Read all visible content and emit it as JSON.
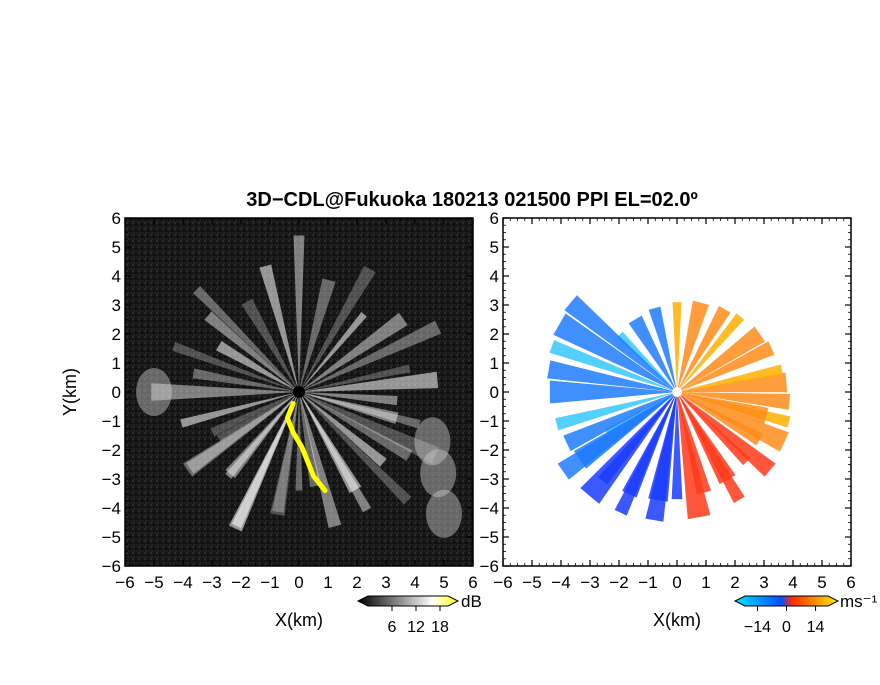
{
  "title": "3D−CDL@Fukuoka 180213 021500 PPI EL=02.0º",
  "chart_data": [
    {
      "type": "heatmap",
      "panel": "reflectivity",
      "xlabel": "X(km)",
      "ylabel": "Y(km)",
      "xlim": [
        -6,
        6
      ],
      "ylim": [
        -6,
        6
      ],
      "xticks": [
        "−6",
        "−5",
        "−4",
        "−3",
        "−2",
        "−1",
        "0",
        "1",
        "2",
        "3",
        "4",
        "5",
        "6"
      ],
      "yticks": [
        "6",
        "5",
        "4",
        "3",
        "2",
        "1",
        "0",
        "−1",
        "−2",
        "−3",
        "−4",
        "−5",
        "−6"
      ],
      "colorbar": {
        "unit": "dB",
        "ticks": [
          "6",
          "12",
          "18"
        ],
        "tick_values": [
          6,
          12,
          18
        ],
        "range": [
          0,
          20
        ],
        "colors": [
          "#000000",
          "#ffffff",
          "#ffff00"
        ]
      },
      "features": {
        "background": "#1a1a1a",
        "beam_color": "#ffffff",
        "highlight_color": "#ffff00",
        "yellow_trail_km": [
          [
            -0.2,
            -0.4
          ],
          [
            -0.4,
            -0.9
          ],
          [
            -0.2,
            -1.4
          ],
          [
            0.1,
            -1.9
          ],
          [
            0.3,
            -2.4
          ],
          [
            0.5,
            -2.9
          ],
          [
            0.9,
            -3.4
          ]
        ],
        "bright_patch_km": [
          [
            4.6,
            -1.7
          ],
          [
            4.8,
            -2.8
          ],
          [
            5.0,
            -4.2
          ],
          [
            -5.0,
            0.0
          ]
        ],
        "beam_azimuths_deg": [
          -150,
          -145,
          -130,
          -115,
          -100,
          -80,
          -60,
          -40,
          -25,
          -15,
          -5,
          5,
          12,
          25,
          35,
          50,
          60,
          75,
          90,
          105,
          120,
          135,
          140,
          150,
          160,
          170,
          180,
          195,
          205,
          215,
          230,
          245,
          260,
          270,
          285,
          300,
          315,
          330,
          345
        ]
      }
    },
    {
      "type": "heatmap",
      "panel": "doppler_velocity",
      "xlabel": "X(km)",
      "xlim": [
        -6,
        6
      ],
      "ylim": [
        -6,
        6
      ],
      "xticks": [
        "−6",
        "−5",
        "−4",
        "−3",
        "−2",
        "−1",
        "0",
        "1",
        "2",
        "3",
        "4",
        "5",
        "6"
      ],
      "yticks": [
        "6",
        "5",
        "4",
        "3",
        "2",
        "1",
        "0",
        "−1",
        "−2",
        "−3",
        "−4",
        "−5",
        "−6"
      ],
      "colorbar": {
        "unit": "ms⁻¹",
        "ticks": [
          "−14",
          "0",
          "14"
        ],
        "tick_values": [
          -14,
          0,
          14
        ],
        "range": [
          -20,
          20
        ],
        "colors": [
          "#00e5ff",
          "#0050ff",
          "#ff2a00",
          "#ffee00"
        ]
      },
      "features": {
        "background": "#ffffff",
        "negative_color": "#1e7bff",
        "positive_color": "#ff8c1a"
      }
    }
  ]
}
